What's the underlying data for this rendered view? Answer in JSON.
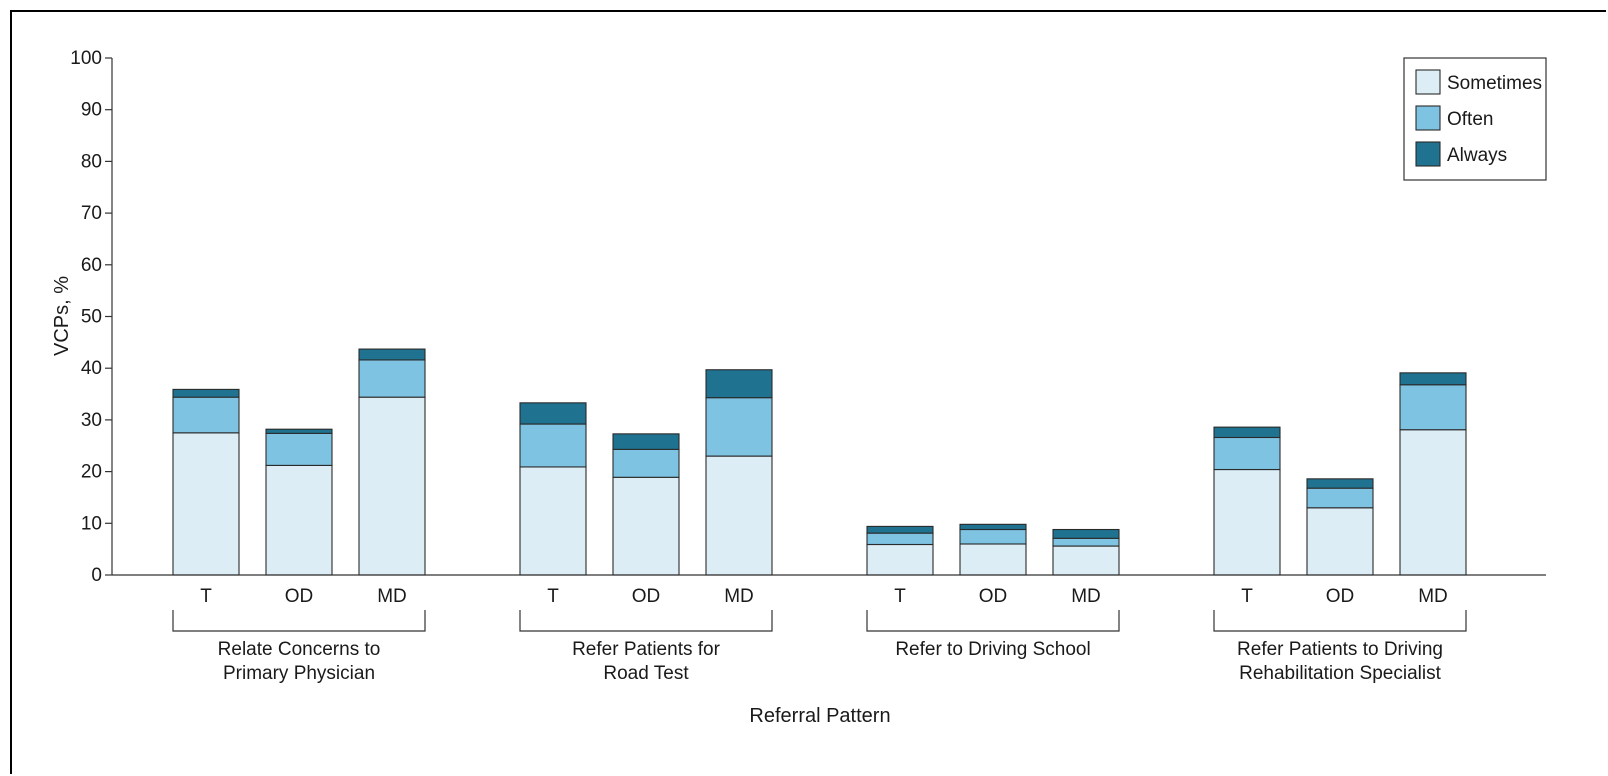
{
  "chart_data": {
    "type": "bar",
    "stacked": true,
    "ylabel": "VCPs, %",
    "xlabel": "Referral Pattern",
    "ylim": [
      0,
      100
    ],
    "yticks": [
      0,
      10,
      20,
      30,
      40,
      50,
      60,
      70,
      80,
      90,
      100
    ],
    "grid": false,
    "legend_position": "top-right",
    "series": [
      {
        "name": "Sometimes",
        "color": "#dcedf6"
      },
      {
        "name": "Often",
        "color": "#7fc3e2"
      },
      {
        "name": "Always",
        "color": "#1f7391"
      }
    ],
    "groups": [
      {
        "label_lines": [
          "Relate Concerns to",
          "Primary Physician"
        ],
        "bars": [
          {
            "category": "T",
            "values": [
              27.5,
              6.9,
              1.5
            ]
          },
          {
            "category": "OD",
            "values": [
              21.2,
              6.2,
              0.8
            ]
          },
          {
            "category": "MD",
            "values": [
              34.4,
              7.2,
              2.1
            ]
          }
        ]
      },
      {
        "label_lines": [
          "Refer Patients for",
          "Road Test"
        ],
        "bars": [
          {
            "category": "T",
            "values": [
              20.9,
              8.3,
              4.1
            ]
          },
          {
            "category": "OD",
            "values": [
              18.9,
              5.4,
              3.0
            ]
          },
          {
            "category": "MD",
            "values": [
              23.0,
              11.3,
              5.4
            ]
          }
        ]
      },
      {
        "label_lines": [
          "Refer to Driving School"
        ],
        "bars": [
          {
            "category": "T",
            "values": [
              5.9,
              2.2,
              1.3
            ]
          },
          {
            "category": "OD",
            "values": [
              6.0,
              2.8,
              1.0
            ]
          },
          {
            "category": "MD",
            "values": [
              5.6,
              1.5,
              1.7
            ]
          }
        ]
      },
      {
        "label_lines": [
          "Refer Patients to Driving",
          "Rehabilitation Specialist"
        ],
        "bars": [
          {
            "category": "T",
            "values": [
              20.4,
              6.2,
              2.0
            ]
          },
          {
            "category": "OD",
            "values": [
              13.0,
              3.8,
              1.8
            ]
          },
          {
            "category": "MD",
            "values": [
              28.1,
              8.7,
              2.3
            ]
          }
        ]
      }
    ]
  }
}
